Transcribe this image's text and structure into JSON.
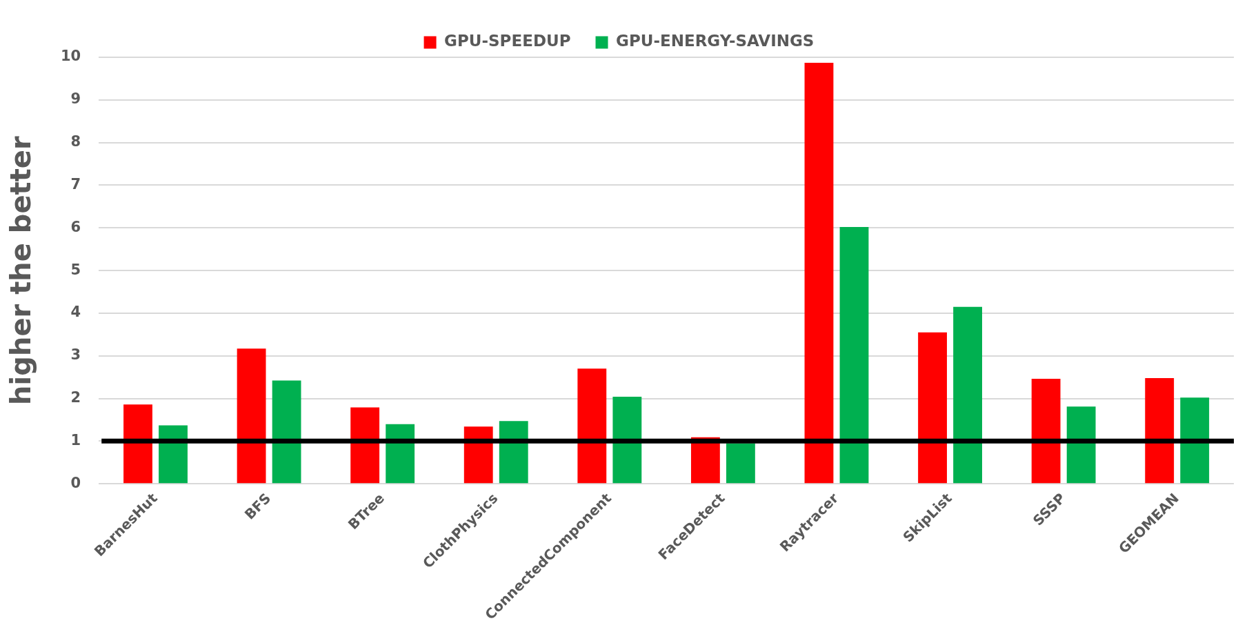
{
  "chart_data": {
    "type": "bar",
    "ylabel": "higher the better",
    "categories": [
      "BarnesHut",
      "BFS",
      "BTree",
      "ClothPhysics",
      "ConnectedComponent",
      "FaceDetect",
      "Raytracer",
      "SkipList",
      "SSSP",
      "GEOMEAN"
    ],
    "series": [
      {
        "name": "GPU-SPEEDUP",
        "color": "#ff0000",
        "values": [
          1.86,
          3.17,
          1.79,
          1.34,
          2.7,
          1.09,
          9.87,
          3.55,
          2.46,
          2.48
        ]
      },
      {
        "name": "GPU-ENERGY-SAVINGS",
        "color": "#00b050",
        "values": [
          1.37,
          2.42,
          1.4,
          1.47,
          2.04,
          0.95,
          6.02,
          4.15,
          1.81,
          2.02
        ]
      }
    ],
    "ylim": [
      0,
      10
    ],
    "yticks": [
      0,
      1,
      2,
      3,
      4,
      5,
      6,
      7,
      8,
      9,
      10
    ],
    "grid": "y",
    "legend": "top",
    "ref_lines": [
      {
        "axis": "y",
        "value": 1,
        "color": "#000000"
      }
    ]
  }
}
